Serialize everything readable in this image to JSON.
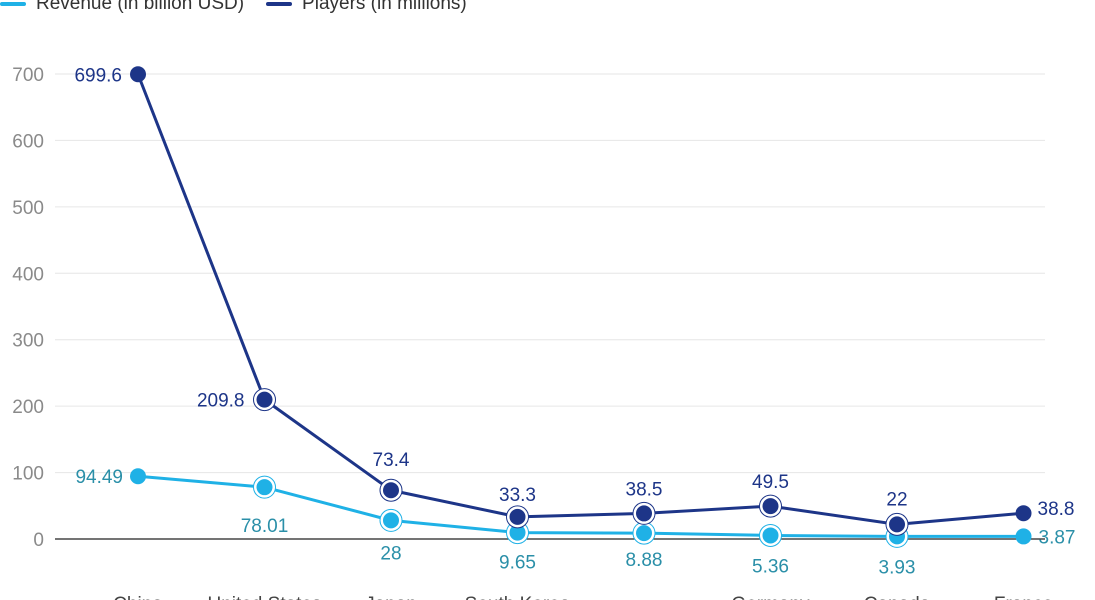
{
  "legend": [
    {
      "label": "Revenue (in billion USD)",
      "color": "#1fb1e6"
    },
    {
      "label": "Players (in millions)",
      "color": "#1d3588"
    }
  ],
  "chart_data": {
    "type": "line",
    "categories": [
      "China",
      "United States",
      "Japan",
      "South Korea",
      "",
      "Germany",
      "Canada",
      "France"
    ],
    "series": [
      {
        "name": "Revenue (in billion USD)",
        "color": "#1fb1e6",
        "label_color": "#2a8fa8",
        "values": [
          94.49,
          78.01,
          28,
          9.65,
          8.88,
          5.36,
          3.93,
          3.87
        ],
        "labels": [
          "94.49",
          "78.01",
          "28",
          "9.65",
          "8.88",
          "5.36",
          "3.93",
          "3.87"
        ]
      },
      {
        "name": "Players (in millions)",
        "color": "#1d3588",
        "label_color": "#1d3588",
        "values": [
          699.6,
          209.8,
          73.4,
          33.3,
          38.5,
          49.5,
          22,
          38.8
        ],
        "labels": [
          "699.6",
          "209.8",
          "73.4",
          "33.3",
          "38.5",
          "49.5",
          "22",
          "38.8"
        ]
      }
    ],
    "ylim": [
      0,
      700
    ],
    "yticks": [
      0,
      100,
      200,
      300,
      400,
      500,
      600,
      700
    ],
    "grid": true,
    "legend_position": "top-left"
  }
}
